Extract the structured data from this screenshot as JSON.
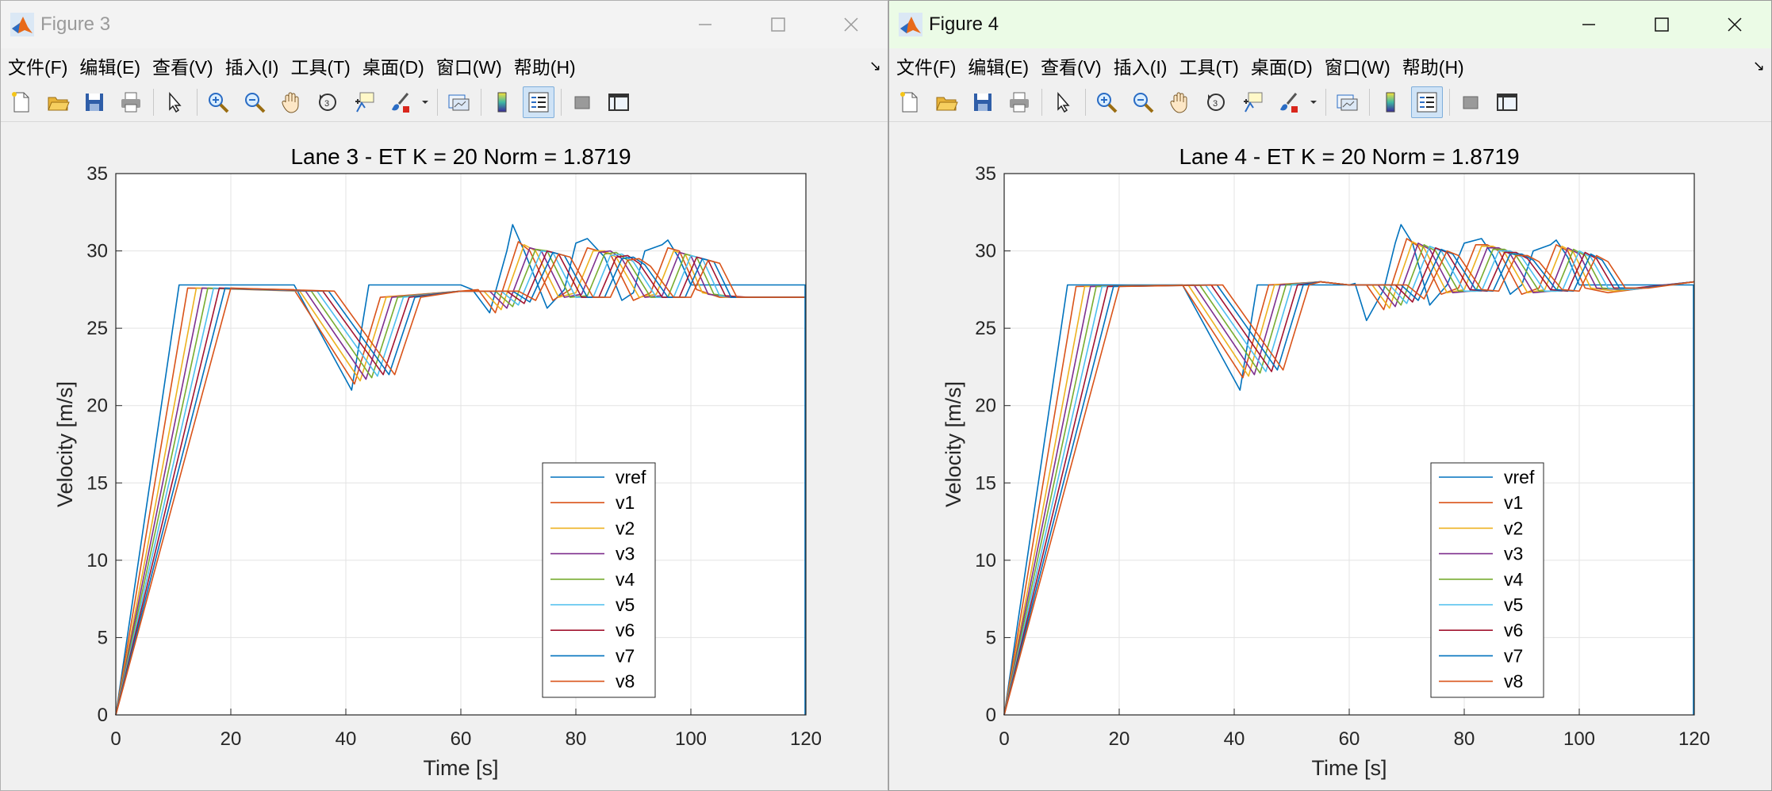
{
  "menu_items": [
    "文件(F)",
    "编辑(E)",
    "查看(V)",
    "插入(I)",
    "工具(T)",
    "桌面(D)",
    "窗口(W)",
    "帮助(H)"
  ],
  "windows": [
    {
      "title": "Figure 3",
      "chart_data": {
        "type": "line",
        "title": "Lane 3 - ET K = 20 Norm = 1.8719",
        "xlabel": "Time [s]",
        "ylabel": "Velocity [m/s]",
        "xlim": [
          0,
          120
        ],
        "ylim": [
          0,
          35
        ],
        "xticks": [
          "0",
          "20",
          "40",
          "60",
          "80",
          "100",
          "120"
        ],
        "yticks": [
          "0",
          "5",
          "10",
          "15",
          "20",
          "25",
          "30",
          "35"
        ],
        "grid": true,
        "legend_position": "bottom-right",
        "series_colors": [
          "#0072BD",
          "#D95319",
          "#EDB120",
          "#7E2F8E",
          "#77AC30",
          "#4DBEEE",
          "#A2142F",
          "#0072BD",
          "#D95319"
        ],
        "series": [
          {
            "name": "vref",
            "x": [
              0,
              11,
              31,
              41,
              44,
              60,
              62,
              65,
              68,
              69,
              71,
              75,
              78,
              80,
              82,
              85,
              88,
              90,
              92,
              95,
              96,
              98,
              100,
              120
            ],
            "y": [
              0,
              27.8,
              27.8,
              21,
              27.8,
              27.8,
              27.5,
              26,
              30,
              31.7,
              30,
              26.3,
              27.5,
              30.5,
              30.8,
              29.6,
              26.8,
              27.3,
              30,
              30.4,
              30.7,
              29.5,
              27.8,
              27.8
            ]
          },
          {
            "name": "v1",
            "x": [
              0,
              12.5,
              31,
              41.5,
              46,
              60,
              63,
              66,
              70,
              72,
              76,
              79,
              82,
              84,
              86,
              90,
              93,
              96,
              98,
              101,
              105,
              120
            ],
            "y": [
              0,
              27.6,
              27.5,
              21.4,
              27,
              27.4,
              27.5,
              26,
              30.6,
              30,
              26.8,
              27.5,
              30.2,
              30,
              29.8,
              26.8,
              27.3,
              30.2,
              30,
              27.5,
              27,
              27
            ]
          },
          {
            "name": "v2",
            "x": [
              0,
              14,
              32,
              42.5,
              47,
              60,
              64,
              67,
              71,
              73,
              77,
              80,
              83,
              85,
              87,
              91,
              94,
              97,
              99,
              102,
              106,
              120
            ],
            "y": [
              0,
              27.6,
              27.4,
              21.6,
              27,
              27.4,
              27.4,
              26.2,
              30.4,
              30,
              27,
              27.3,
              30,
              30,
              29.6,
              27,
              27.2,
              30,
              29.8,
              27.3,
              27,
              27
            ]
          },
          {
            "name": "v3",
            "x": [
              0,
              15,
              33,
              43.5,
              48,
              60,
              65,
              68,
              72,
              74,
              78,
              81,
              84,
              86,
              88,
              92,
              95,
              98,
              100,
              103,
              107,
              120
            ],
            "y": [
              0,
              27.6,
              27.4,
              21.7,
              27,
              27.4,
              27.4,
              26.3,
              30.2,
              30,
              27,
              27.2,
              29.9,
              30,
              29.5,
              27,
              27.1,
              29.9,
              29.7,
              27.2,
              27,
              27
            ]
          },
          {
            "name": "v4",
            "x": [
              0,
              16,
              34,
              44.5,
              49,
              60,
              66,
              69,
              73,
              75,
              79,
              82,
              85,
              87,
              89,
              93,
              96,
              99,
              101,
              104,
              108,
              120
            ],
            "y": [
              0,
              27.6,
              27.4,
              21.8,
              27,
              27.4,
              27.4,
              26.4,
              30.1,
              30,
              27,
              27.1,
              29.8,
              29.9,
              29.4,
              27,
              27,
              29.8,
              29.6,
              27.2,
              27,
              27
            ]
          },
          {
            "name": "v5",
            "x": [
              0,
              17,
              35,
              45.5,
              50,
              60,
              67,
              70,
              74,
              76,
              80,
              83,
              86,
              88,
              90,
              94,
              97,
              100,
              102,
              105,
              109,
              120
            ],
            "y": [
              0,
              27.6,
              27.4,
              21.9,
              27,
              27.4,
              27.4,
              26.5,
              30,
              29.9,
              27,
              27,
              29.7,
              29.8,
              29.3,
              27,
              27,
              29.7,
              29.5,
              27.1,
              27,
              27
            ]
          },
          {
            "name": "v6",
            "x": [
              0,
              18,
              36,
              46.5,
              51,
              60,
              68,
              71,
              75,
              77,
              81,
              84,
              87,
              89,
              91,
              95,
              98,
              101,
              103,
              106,
              110,
              120
            ],
            "y": [
              0,
              27.6,
              27.4,
              22,
              27,
              27.4,
              27.4,
              26.6,
              30,
              29.8,
              27,
              27,
              29.6,
              29.7,
              29.2,
              27,
              27,
              29.6,
              29.4,
              27.1,
              27,
              27
            ]
          },
          {
            "name": "v7",
            "x": [
              0,
              19,
              37,
              47.5,
              52,
              60,
              69,
              72,
              76,
              78,
              82,
              85,
              88,
              90,
              92,
              96,
              99,
              102,
              104,
              107,
              111,
              120
            ],
            "y": [
              0,
              27.6,
              27.4,
              22,
              27,
              27.4,
              27.4,
              26.7,
              29.9,
              29.7,
              27,
              27,
              29.5,
              29.6,
              29.1,
              27,
              27,
              29.5,
              29.3,
              27,
              27,
              27
            ]
          },
          {
            "name": "v8",
            "x": [
              0,
              20,
              38,
              48.5,
              53,
              60,
              70,
              73,
              77,
              79,
              83,
              86,
              89,
              91,
              93,
              97,
              100,
              103,
              105,
              108,
              112,
              120
            ],
            "y": [
              0,
              27.6,
              27.4,
              22,
              27,
              27.4,
              27.4,
              26.8,
              29.8,
              29.6,
              27,
              27,
              29.4,
              29.5,
              29,
              27,
              27,
              29.4,
              29.2,
              27,
              27,
              27
            ]
          }
        ]
      }
    },
    {
      "title": "Figure 4",
      "chart_data": {
        "type": "line",
        "title": "Lane 4 - ET K = 20 Norm = 1.8719",
        "xlabel": "Time [s]",
        "ylabel": "Velocity [m/s]",
        "xlim": [
          0,
          120
        ],
        "ylim": [
          0,
          35
        ],
        "xticks": [
          "0",
          "20",
          "40",
          "60",
          "80",
          "100",
          "120"
        ],
        "yticks": [
          "0",
          "5",
          "10",
          "15",
          "20",
          "25",
          "30",
          "35"
        ],
        "grid": true,
        "legend_position": "bottom-right",
        "series_colors": [
          "#0072BD",
          "#D95319",
          "#EDB120",
          "#7E2F8E",
          "#77AC30",
          "#4DBEEE",
          "#A2142F",
          "#0072BD",
          "#D95319"
        ],
        "series": [
          {
            "name": "vref",
            "x": [
              0,
              11,
              31,
              41,
              44,
              60,
              61,
              63,
              66,
              68,
              69,
              71,
              74,
              77,
              80,
              83,
              85,
              88,
              90,
              92,
              95,
              96,
              98,
              100,
              120
            ],
            "y": [
              0,
              27.8,
              27.8,
              21,
              27.8,
              27.8,
              27.9,
              25.5,
              27.5,
              30.5,
              31.7,
              30.5,
              26.5,
              27.8,
              30.5,
              30.8,
              29.7,
              27.2,
              27.8,
              30,
              30.4,
              30.7,
              29.6,
              27.8,
              27.8
            ]
          },
          {
            "name": "v1",
            "x": [
              0,
              12.5,
              31,
              41.5,
              46,
              55,
              60,
              63,
              66,
              70,
              72,
              76,
              79,
              82,
              84,
              86,
              90,
              93,
              96,
              98,
              101,
              105,
              120
            ],
            "y": [
              0,
              27.7,
              27.8,
              21.8,
              27.8,
              28,
              27.8,
              27.8,
              26.2,
              30.8,
              30.3,
              27.2,
              27.6,
              30.4,
              30.4,
              30,
              27.2,
              27.6,
              30.4,
              30,
              27.6,
              27.3,
              28
            ]
          },
          {
            "name": "v2",
            "x": [
              0,
              14,
              32,
              42.5,
              47,
              55,
              60,
              64,
              67,
              71,
              73,
              77,
              80,
              83,
              85,
              87,
              91,
              94,
              97,
              99,
              102,
              106,
              120
            ],
            "y": [
              0,
              27.7,
              27.8,
              21.9,
              27.8,
              28,
              27.8,
              27.8,
              26.3,
              30.6,
              30.2,
              27.3,
              27.5,
              30.3,
              30.3,
              29.9,
              27.3,
              27.5,
              30.3,
              29.9,
              27.6,
              27.4,
              28
            ]
          },
          {
            "name": "v3",
            "x": [
              0,
              15,
              33,
              43.5,
              48,
              55,
              60,
              65,
              68,
              72,
              74,
              78,
              81,
              84,
              86,
              88,
              92,
              95,
              98,
              100,
              103,
              107,
              120
            ],
            "y": [
              0,
              27.7,
              27.8,
              22,
              27.8,
              28,
              27.8,
              27.8,
              26.4,
              30.5,
              30.1,
              27.3,
              27.4,
              30.2,
              30.2,
              29.8,
              27.3,
              27.4,
              30.2,
              29.8,
              27.6,
              27.5,
              28
            ]
          },
          {
            "name": "v4",
            "x": [
              0,
              16,
              34,
              44.5,
              49,
              55,
              60,
              66,
              69,
              73,
              75,
              79,
              82,
              85,
              87,
              89,
              93,
              96,
              99,
              101,
              104,
              108,
              120
            ],
            "y": [
              0,
              27.7,
              27.8,
              22.1,
              27.8,
              28,
              27.8,
              27.8,
              26.5,
              30.4,
              30,
              27.4,
              27.4,
              30.1,
              30.1,
              29.7,
              27.4,
              27.4,
              30.1,
              29.7,
              27.6,
              27.5,
              28
            ]
          },
          {
            "name": "v5",
            "x": [
              0,
              17,
              35,
              45.5,
              50,
              55,
              60,
              67,
              70,
              74,
              76,
              80,
              83,
              86,
              88,
              90,
              94,
              97,
              100,
              102,
              105,
              109,
              120
            ],
            "y": [
              0,
              27.7,
              27.8,
              22.2,
              27.8,
              28,
              27.8,
              27.8,
              26.6,
              30.3,
              30,
              27.4,
              27.4,
              30,
              30,
              29.6,
              27.4,
              27.4,
              30,
              29.6,
              27.6,
              27.5,
              28
            ]
          },
          {
            "name": "v6",
            "x": [
              0,
              18,
              36,
              46.5,
              51,
              55,
              60,
              68,
              71,
              75,
              77,
              81,
              84,
              87,
              89,
              91,
              95,
              98,
              101,
              103,
              106,
              110,
              120
            ],
            "y": [
              0,
              27.7,
              27.8,
              22.2,
              27.8,
              28,
              27.8,
              27.8,
              26.7,
              30.2,
              29.9,
              27.5,
              27.4,
              29.9,
              29.9,
              29.5,
              27.5,
              27.4,
              29.9,
              29.5,
              27.6,
              27.6,
              28
            ]
          },
          {
            "name": "v7",
            "x": [
              0,
              19,
              37,
              47.5,
              52,
              55,
              60,
              69,
              72,
              76,
              78,
              82,
              85,
              88,
              90,
              92,
              96,
              99,
              102,
              104,
              107,
              111,
              120
            ],
            "y": [
              0,
              27.7,
              27.8,
              22.3,
              27.8,
              28,
              27.8,
              27.8,
              26.8,
              30.1,
              29.8,
              27.5,
              27.4,
              29.8,
              29.8,
              29.4,
              27.5,
              27.4,
              29.8,
              29.4,
              27.6,
              27.6,
              28
            ]
          },
          {
            "name": "v8",
            "x": [
              0,
              20,
              38,
              48.5,
              53,
              55,
              60,
              70,
              73,
              77,
              79,
              83,
              86,
              89,
              91,
              93,
              97,
              100,
              103,
              105,
              108,
              112,
              120
            ],
            "y": [
              0,
              27.7,
              27.8,
              22.3,
              27.8,
              28,
              27.8,
              27.8,
              26.9,
              30,
              29.7,
              27.5,
              27.4,
              29.7,
              29.7,
              29.3,
              27.5,
              27.4,
              29.7,
              29.3,
              27.6,
              27.6,
              28
            ]
          }
        ]
      }
    }
  ]
}
